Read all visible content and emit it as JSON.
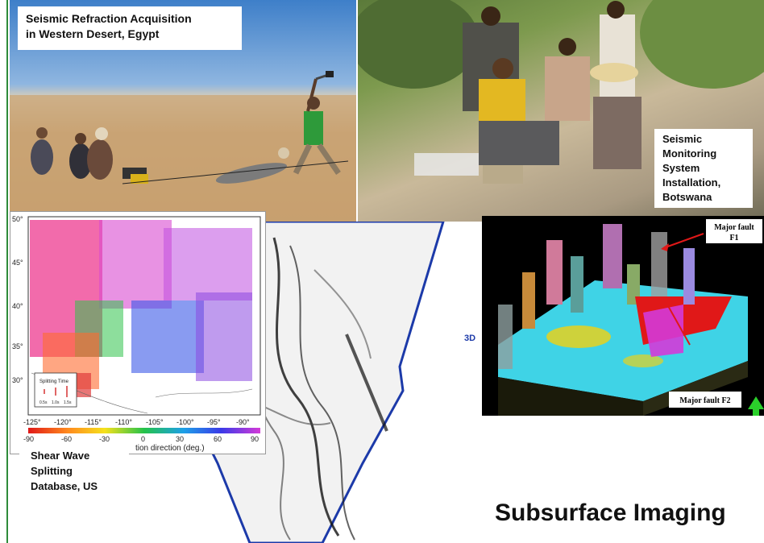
{
  "captions": {
    "desert": [
      "Seismic Refraction Acquisition",
      "in Western Desert, Egypt"
    ],
    "botswana": [
      "Seismic",
      "Monitoring",
      "System",
      "Installation,",
      "Botswana"
    ],
    "shear": [
      "Shear Wave",
      "Splitting",
      "Database, US"
    ]
  },
  "title": "Subsurface Imaging",
  "map": {
    "lat_ticks": [
      "50°",
      "45°",
      "40°",
      "35°",
      "30°"
    ],
    "lon_ticks": [
      "-125°",
      "-120°",
      "-115°",
      "-110°",
      "-105°",
      "-100°",
      "-95°",
      "-90°"
    ],
    "colorbar_ticks": [
      "-90",
      "-60",
      "-30",
      "0",
      "30",
      "60",
      "90"
    ],
    "colorbar_label": "tion direction (deg.)",
    "legend_title": "Splitting Time",
    "legend_items": [
      "0.5s",
      "1.0s",
      "1.5s"
    ]
  },
  "seismic": {
    "label_3d": "3D"
  },
  "fault": {
    "f1": [
      "Major fault",
      "F1"
    ],
    "f2": "Major fault F2",
    "colors": {
      "cyan": "#3fd3e6",
      "yellow": "#e8d11c",
      "red": "#e01818",
      "magenta": "#d43ad8"
    }
  }
}
